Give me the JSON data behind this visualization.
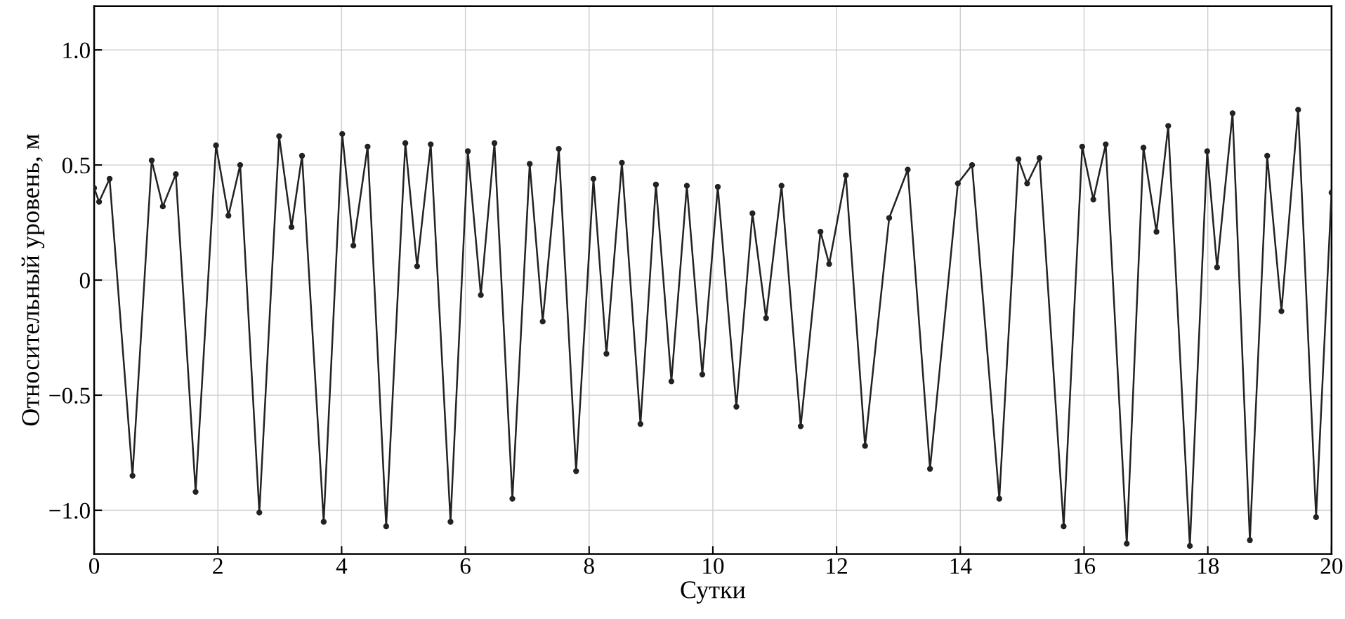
{
  "chart_data": {
    "type": "line",
    "xlabel": "Сутки",
    "ylabel": "Относительный уровень, м",
    "xlim": [
      0,
      20
    ],
    "xticks": [
      0,
      2,
      4,
      6,
      8,
      10,
      12,
      14,
      16,
      18,
      20
    ],
    "ylim": [
      -1.19,
      1.19
    ],
    "yticks": [
      {
        "value": -1.0,
        "label": "−1.0"
      },
      {
        "value": -0.5,
        "label": "−0.5"
      },
      0,
      {
        "value": 0.5,
        "label": "0.5"
      },
      {
        "value": 1.0,
        "label": "1.0"
      }
    ],
    "grid": true,
    "marker": "circle",
    "line_style": "solid",
    "series": [
      {
        "color": "#222222",
        "x": [
          0,
          0.08,
          0.25,
          0.62,
          0.93,
          1.11,
          1.32,
          1.64,
          1.97,
          2.17,
          2.36,
          2.67,
          2.99,
          3.19,
          3.36,
          3.71,
          4.01,
          4.19,
          4.42,
          4.72,
          5.03,
          5.22,
          5.44,
          5.76,
          6.04,
          6.25,
          6.47,
          6.76,
          7.04,
          7.25,
          7.51,
          7.79,
          8.07,
          8.28,
          8.53,
          8.83,
          9.08,
          9.33,
          9.58,
          9.83,
          10.08,
          10.38,
          10.64,
          10.86,
          11.11,
          11.42,
          11.74,
          11.88,
          12.15,
          12.46,
          12.85,
          13.15,
          13.51,
          13.96,
          14.19,
          14.63,
          14.94,
          15.08,
          15.28,
          15.67,
          15.97,
          16.15,
          16.35,
          16.69,
          16.96,
          17.17,
          17.36,
          17.71,
          17.99,
          18.15,
          18.4,
          18.68,
          18.96,
          19.19,
          19.46,
          19.75,
          20
        ],
        "values": [
          0.4,
          0.34,
          0.44,
          -0.85,
          0.52,
          0.32,
          0.46,
          -0.92,
          0.585,
          0.28,
          0.5,
          -1.01,
          0.625,
          0.23,
          0.54,
          -1.05,
          0.635,
          0.15,
          0.58,
          -1.07,
          0.595,
          0.06,
          0.59,
          -1.05,
          0.56,
          -0.065,
          0.595,
          -0.95,
          0.505,
          -0.18,
          0.57,
          -0.83,
          0.44,
          -0.32,
          0.51,
          -0.625,
          0.415,
          -0.44,
          0.41,
          -0.41,
          0.405,
          -0.55,
          0.29,
          -0.165,
          0.41,
          -0.635,
          0.21,
          0.07,
          0.455,
          -0.72,
          0.27,
          0.48,
          -0.82,
          0.42,
          0.5,
          -0.95,
          0.525,
          0.42,
          0.53,
          -1.07,
          0.58,
          0.35,
          0.59,
          -1.145,
          0.575,
          0.21,
          0.67,
          -1.155,
          0.56,
          0.055,
          0.725,
          -1.13,
          0.54,
          -0.135,
          0.74,
          -1.03,
          0.38
        ]
      }
    ]
  }
}
